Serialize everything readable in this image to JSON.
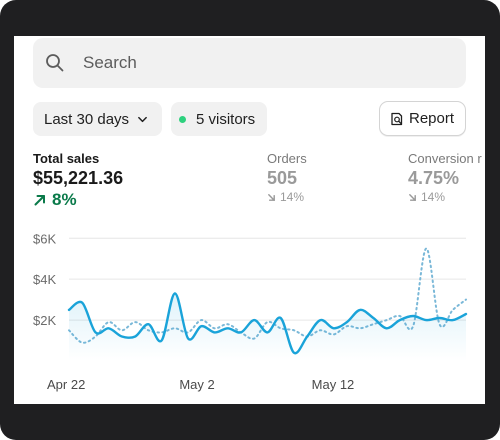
{
  "search": {
    "placeholder": "Search",
    "icon": "search-icon"
  },
  "filters": {
    "date_range": "Last 30 days",
    "visitors": "5 visitors",
    "visitors_dot_color": "#2dd17e"
  },
  "toolbar": {
    "report_label": "Report"
  },
  "metrics": [
    {
      "label": "Total sales",
      "value": "$55,221.36",
      "change": "8%",
      "direction": "up",
      "color": "#0a7a4a"
    },
    {
      "label": "Orders",
      "value": "505",
      "change": "14%",
      "direction": "down"
    },
    {
      "label": "Conversion r",
      "value": "4.75%",
      "change": "14%",
      "direction": "down"
    }
  ],
  "chart_data": {
    "type": "line",
    "y_tick_labels": [
      "$6K",
      "$4K",
      "$2K"
    ],
    "y_ticks": [
      6000,
      4000,
      2000
    ],
    "ylim": [
      0,
      6600
    ],
    "x_tick_labels": [
      "Apr 22",
      "May 2",
      "May 12"
    ],
    "x_tick_positions": [
      0,
      10,
      20
    ],
    "xlim": [
      0,
      30
    ],
    "grid": true,
    "series": [
      {
        "style": "solid",
        "color": "#1aa3d9",
        "x": [
          0,
          1,
          2,
          3,
          4,
          5,
          6,
          7,
          8,
          9,
          10,
          11,
          12,
          13,
          14,
          15,
          16,
          17,
          18,
          19,
          20,
          21,
          22,
          23,
          24,
          25,
          26,
          27,
          28,
          29,
          30
        ],
        "y": [
          2500,
          2850,
          1400,
          1600,
          1200,
          1200,
          1800,
          1000,
          3300,
          1100,
          1700,
          1400,
          1600,
          1400,
          2000,
          1400,
          2100,
          400,
          1200,
          2000,
          1600,
          1900,
          2500,
          2100,
          1600,
          2000,
          2200,
          2000,
          2100,
          2000,
          2300
        ]
      },
      {
        "style": "dotted",
        "color": "#7ab8d8",
        "x": [
          0,
          1,
          2,
          3,
          4,
          5,
          6,
          7,
          8,
          9,
          10,
          11,
          12,
          13,
          14,
          15,
          16,
          17,
          18,
          19,
          20,
          21,
          22,
          23,
          24,
          25,
          26,
          27,
          28,
          29,
          30
        ],
        "y": [
          1500,
          900,
          1200,
          1900,
          1500,
          1900,
          1500,
          1400,
          1600,
          1400,
          2000,
          1600,
          1800,
          1400,
          1100,
          1900,
          1600,
          1500,
          1200,
          1500,
          1300,
          1700,
          1600,
          1800,
          2000,
          2200,
          1700,
          5500,
          1800,
          2500,
          3000
        ]
      }
    ]
  }
}
